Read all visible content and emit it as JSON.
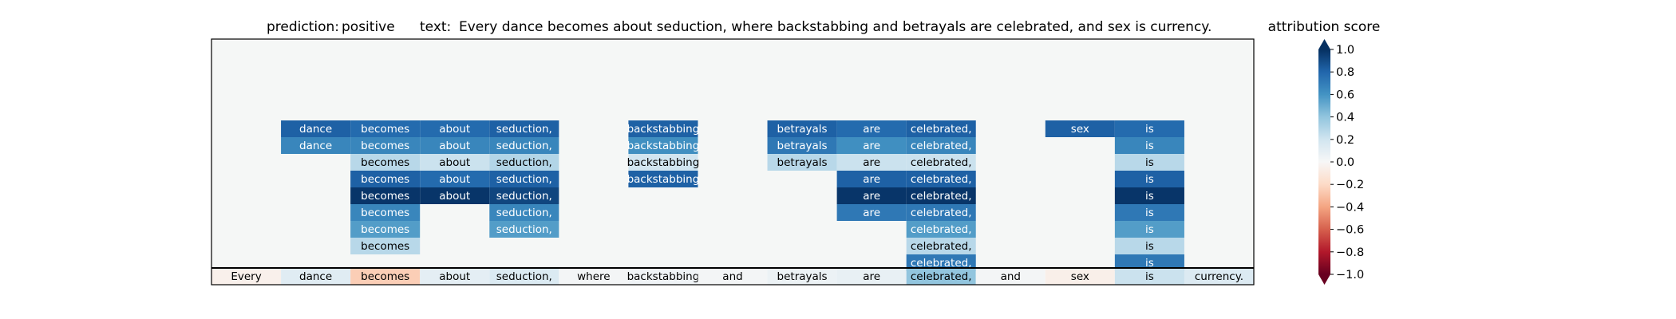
{
  "chart_data": {
    "type": "heatmap",
    "title": {
      "prediction_label": "prediction:",
      "prediction_value": "positive",
      "text_label": "text:",
      "text_value": "Every dance becomes about seduction, where backstabbing and betrayals are celebrated, and sex is currency."
    },
    "colorbar": {
      "label": "attribution score",
      "colormap": "RdBu",
      "range": [
        -1.0,
        1.0
      ],
      "extend": "both",
      "ticks": [
        "1.0",
        "0.8",
        "0.6",
        "0.4",
        "0.2",
        "0.0",
        "−0.2",
        "−0.4",
        "−0.6",
        "−0.8",
        "−1.0"
      ],
      "tick_values": [
        1.0,
        0.8,
        0.6,
        0.4,
        0.2,
        0.0,
        -0.2,
        -0.4,
        -0.6,
        -0.8,
        -1.0
      ]
    },
    "tokens": [
      "Every",
      "dance",
      "becomes",
      "about",
      "seduction,",
      "where",
      "backstabbing",
      "and",
      "betrayals",
      "are",
      "celebrated,",
      "and",
      "sex",
      "is",
      "currency."
    ],
    "token_scores": [
      -0.05,
      0.12,
      -0.25,
      0.1,
      0.15,
      0.02,
      0.04,
      0.02,
      0.06,
      0.08,
      0.4,
      0.02,
      -0.06,
      0.22,
      0.14
    ],
    "rows": [
      [
        null,
        0.82,
        0.78,
        0.78,
        0.82,
        null,
        0.82,
        null,
        0.82,
        0.78,
        0.82,
        null,
        0.82,
        0.78,
        null
      ],
      [
        null,
        0.66,
        0.66,
        0.66,
        0.66,
        null,
        0.62,
        null,
        0.72,
        0.62,
        0.66,
        null,
        null,
        0.66,
        null
      ],
      [
        null,
        null,
        0.28,
        0.22,
        0.3,
        null,
        0.2,
        null,
        0.28,
        0.22,
        0.22,
        null,
        null,
        0.28,
        null
      ],
      [
        null,
        null,
        0.82,
        0.78,
        0.82,
        null,
        0.82,
        null,
        null,
        0.82,
        0.82,
        null,
        null,
        0.82,
        null
      ],
      [
        null,
        null,
        0.98,
        0.98,
        0.92,
        null,
        null,
        null,
        null,
        0.98,
        0.98,
        null,
        null,
        0.98,
        null
      ],
      [
        null,
        null,
        0.66,
        null,
        0.66,
        null,
        null,
        null,
        null,
        0.72,
        0.72,
        null,
        null,
        0.72,
        null
      ],
      [
        null,
        null,
        0.56,
        null,
        0.56,
        null,
        null,
        null,
        null,
        null,
        0.56,
        null,
        null,
        0.56,
        null
      ],
      [
        null,
        null,
        0.28,
        null,
        null,
        null,
        null,
        null,
        null,
        null,
        0.28,
        null,
        null,
        0.28,
        null
      ],
      [
        null,
        null,
        null,
        null,
        null,
        null,
        null,
        null,
        null,
        null,
        0.72,
        null,
        null,
        0.72,
        null
      ]
    ]
  }
}
